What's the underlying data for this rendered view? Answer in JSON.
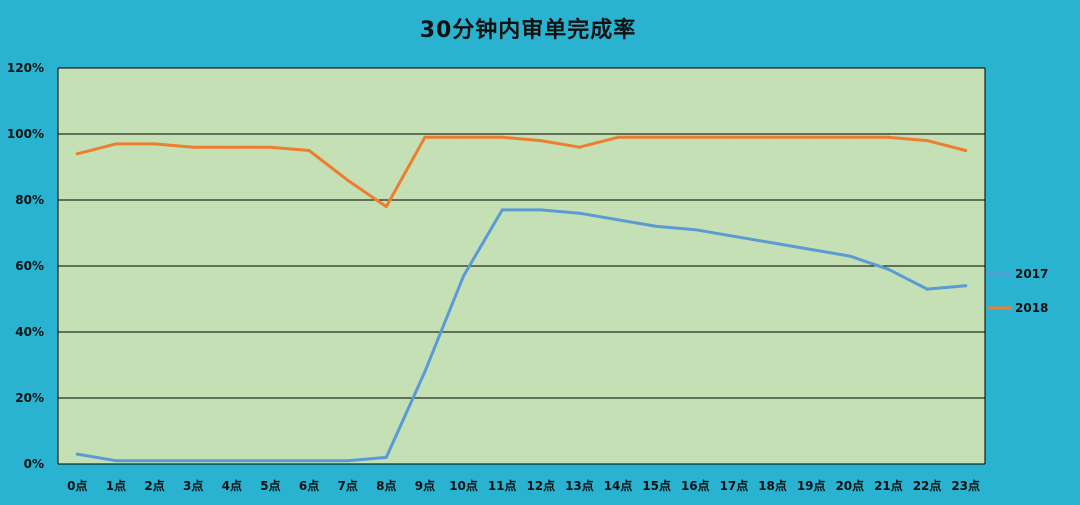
{
  "colors": {
    "background": "#29b3d1",
    "plot_area": "#c5e0b4",
    "gridline": "#000000",
    "series_2017": "#5b9bd5",
    "series_2018": "#ed7d31"
  },
  "chart_data": {
    "type": "line",
    "title": "30分钟内审单完成率",
    "xlabel": "",
    "ylabel": "",
    "categories": [
      "0点",
      "1点",
      "2点",
      "3点",
      "4点",
      "5点",
      "6点",
      "7点",
      "8点",
      "9点",
      "10点",
      "11点",
      "12点",
      "13点",
      "14点",
      "15点",
      "16点",
      "17点",
      "18点",
      "19点",
      "20点",
      "21点",
      "22点",
      "23点"
    ],
    "ylim": [
      0,
      120
    ],
    "yticks": [
      "0%",
      "20%",
      "40%",
      "60%",
      "80%",
      "100%",
      "120%"
    ],
    "grid": true,
    "legend_position": "right",
    "series": [
      {
        "name": "2017",
        "color": "#5b9bd5",
        "values": [
          3,
          1,
          1,
          1,
          1,
          1,
          1,
          1,
          2,
          28,
          57,
          77,
          77,
          76,
          74,
          72,
          71,
          69,
          67,
          65,
          63,
          59,
          53,
          54
        ]
      },
      {
        "name": "2018",
        "color": "#ed7d31",
        "values": [
          94,
          97,
          97,
          96,
          96,
          96,
          95,
          86,
          78,
          99,
          99,
          99,
          98,
          96,
          99,
          99,
          99,
          99,
          99,
          99,
          99,
          99,
          98,
          95
        ]
      }
    ]
  }
}
